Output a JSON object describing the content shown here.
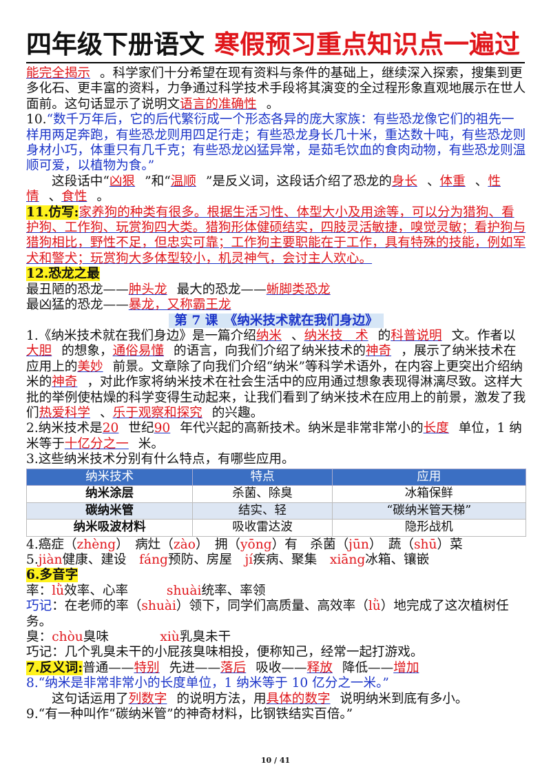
{
  "header": {
    "left": "四年级下册语文",
    "right": "寒假预习重点知识点一遍过"
  },
  "paragraphs": [
    [
      "能完全揭示",
      "。科学家们十分希望在现有资料与条件的基础上，继续深入探索，搜集到更多化石、更丰富的资料，力争通过科学技术手段将其演变的全过程形象直观地展示在世人面前。这句话显示了说明文",
      "语言的准确性",
      "。"
    ],
    [
      "10.",
      "“数千万年后，它的后代繁衍成一个形态各异的庞大家族：有些恐龙像它们的祖先一样用两足奔跑，有些恐龙则用四足行走；有些恐龙身长几十米，重达数十吨，有些恐龙则身材小巧，体重只有几千克；有些恐龙凶猛异常，是茹毛饮血的食肉动物，有些恐龙则温顺可爱，以植物为食。”"
    ],
    [
      "这段话中“",
      "凶狠",
      "”和“",
      "温顺",
      "”是反义词，这段话介绍了恐龙的",
      "身长",
      "、",
      "体重",
      "、",
      "性情",
      "、",
      "食性",
      "。"
    ],
    [
      "11.仿写:",
      "家养狗的种类有很多。根据生活习性、体型大小及用途等，可以分为猎狗、看护狗、工作狗、玩赏狗四大类。猎狗形体健硕结实，四肢灵活敏捷，嗅觉灵敏；看护狗与猎狗相比，野性不足，但忠实可靠；工作狗主要职能在于工作，具有特殊的技能，例如军犬和警犬；玩赏狗大多体型较小，机灵神气，会讨主人欢心。"
    ],
    [
      "12.恐龙之最"
    ],
    [
      "最丑陋的恐龙——",
      "肿头龙",
      "最大的恐龙——",
      "蜥脚类恐龙"
    ],
    [
      "最凶猛的恐龙——",
      "暴龙，又称霸王龙"
    ],
    [
      "第 7 课　《纳米技术就在我们身边》"
    ],
    [
      "1.《纳米技术就在我们身边》是一篇介绍",
      "纳米",
      "、",
      "纳米技　术",
      "的",
      "科普说明",
      "文。作者以",
      "大胆",
      "的想象，",
      "通俗易懂",
      "的语言，向我们介绍了纳米技术的",
      "神奇",
      "，展示了纳米技术在应用上的",
      "美妙",
      "前景。文章除了向我们介绍“纳米”等科学术语外，在内容上更突出介绍纳米的",
      "神奇",
      "，对此作家将纳米技术在社会生活中的应用通过想象表现得淋漓尽致。这样大批的举例使枯燥的科学变得生动起来，让我们看到了纳米技术在应用上的前景，激发了我们",
      "热爱科学",
      "、",
      "乐于观察和探究",
      "的兴趣。"
    ],
    [
      "2.纳米技术是",
      "20",
      "世纪",
      "90",
      "年代兴起的高新技术。纳米是非常非常小的",
      "长度",
      "单位，1 纳米等于",
      "十亿分之一",
      "米。"
    ],
    [
      "3.这些纳米技术分别有什么特点，有哪些应用。"
    ],
    [
      "4.癌症（",
      "zhèng",
      "）　病灶（",
      "zào",
      "）　拥（",
      "yōng",
      "）有　杀菌（",
      "jūn",
      "）　蔬（",
      "shū",
      "）菜"
    ],
    [
      "5.",
      "jiàn",
      "健康、建设　",
      "fáng",
      "预防、房屋　",
      "jí",
      "疾病、聚集　",
      "xiāng",
      "冰箱、镶嵌"
    ],
    [
      "6.多音字"
    ],
    [
      "率：",
      "lǜ",
      "效率、心率　　　",
      "shuài",
      "统率、率领"
    ],
    [
      "巧记",
      "：在老师的率（",
      "shuài",
      "）领下，同学们高质量、高效率（",
      "lǜ",
      "）地完成了这次植树任务。"
    ],
    [
      "臭：",
      "chòu",
      "臭味　　　　",
      "xiù",
      "乳臭未干"
    ],
    [
      "巧记：几个乳臭未干的小屁孩臭味相投，便称知己，经常一起打游戏。"
    ],
    [
      "7.反义词:",
      "普通——",
      "特别",
      "先进——",
      "落后",
      "吸收——",
      "释放",
      "降低——",
      "增加"
    ],
    [
      "8.“纳米是非常非常小的长度单位，1 纳米等于 10 亿分之一米。”"
    ],
    [
      "这句话运用了",
      "列数字",
      "的说明方法，用",
      "具体的数字",
      "说明纳米到底有多小。"
    ],
    [
      "9.“有一种叫作“碳纳米管”的神奇材料，比钢铁结实百倍。”"
    ]
  ],
  "table": {
    "header": [
      "纳米技术",
      "特点",
      "应用"
    ],
    "rows": [
      [
        "纳米涂层",
        "杀菌、除臭",
        "冰箱保鲜"
      ],
      [
        "碳纳米管",
        "结实、轻",
        "“碳纳米管天梯”"
      ],
      [
        "纳米吸波材料",
        "吸收雷达波",
        "隐形战机"
      ]
    ]
  },
  "footer": "10 / 41"
}
